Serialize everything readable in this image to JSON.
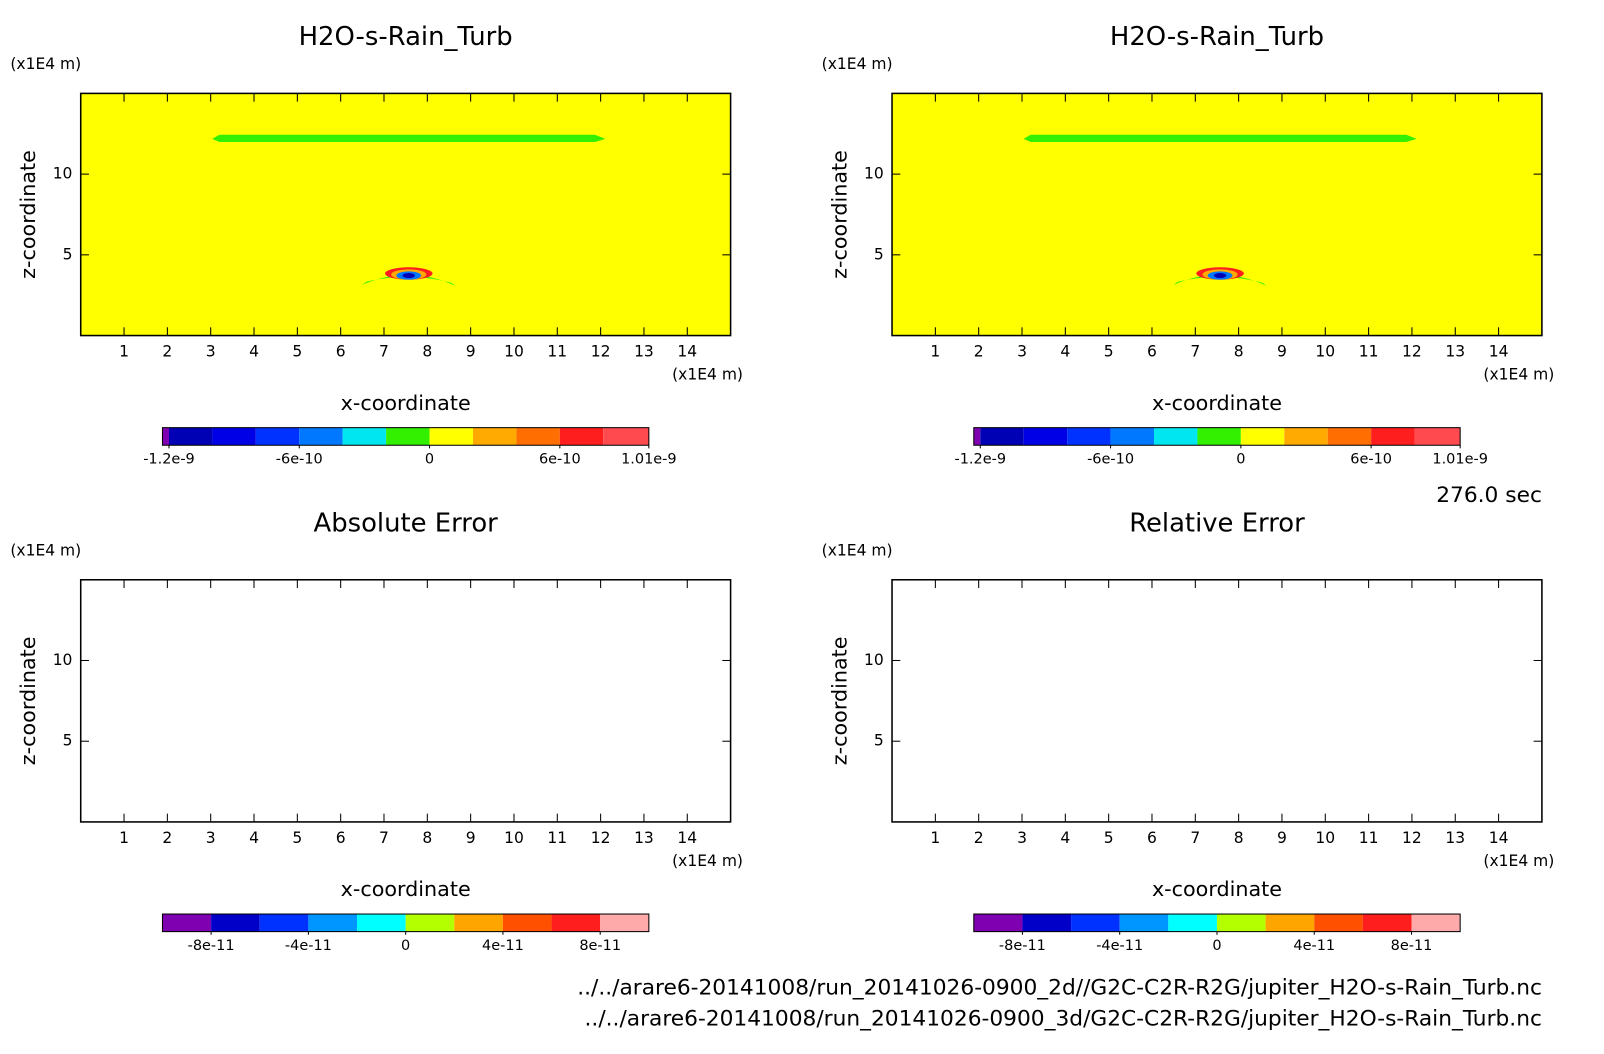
{
  "chart_data": [
    {
      "type": "contour",
      "title": "H2O-s-Rain_Turb",
      "xlabel": "x-coordinate",
      "ylabel": "z-coordinate",
      "xunit": "(x1E4 m)",
      "yunit": "(x1E4 m)",
      "xlim": [
        0,
        15
      ],
      "ylim": [
        0,
        15
      ],
      "xticks": [
        1,
        2,
        3,
        4,
        5,
        6,
        7,
        8,
        9,
        10,
        11,
        12,
        13,
        14
      ],
      "yticks": [
        5,
        10
      ],
      "background": "#ffff00",
      "colorbar": {
        "bounds": [
          -1.23e-09,
          -1.2e-09,
          -1e-09,
          -8e-10,
          -6e-10,
          -4e-10,
          -2e-10,
          0,
          2e-10,
          4e-10,
          6e-10,
          8e-10,
          1.01e-09
        ],
        "colors": [
          "#7f00b0",
          "#0000b4",
          "#0000e6",
          "#0032ff",
          "#0078ff",
          "#00e6f0",
          "#32f000",
          "#ffff00",
          "#ffaa00",
          "#ff6e00",
          "#ff1e1e",
          "#ff4b50"
        ],
        "ticks": [
          -1.2e-09,
          -6e-10,
          0,
          6e-10,
          1.01e-09
        ]
      }
    },
    {
      "type": "contour",
      "title": "H2O-s-Rain_Turb",
      "xlabel": "x-coordinate",
      "ylabel": "z-coordinate",
      "xunit": "(x1E4 m)",
      "yunit": "(x1E4 m)",
      "xlim": [
        0,
        15
      ],
      "ylim": [
        0,
        15
      ],
      "xticks": [
        1,
        2,
        3,
        4,
        5,
        6,
        7,
        8,
        9,
        10,
        11,
        12,
        13,
        14
      ],
      "yticks": [
        5,
        10
      ],
      "background": "#ffff00",
      "colorbar": {
        "bounds": [
          -1.23e-09,
          -1.2e-09,
          -1e-09,
          -8e-10,
          -6e-10,
          -4e-10,
          -2e-10,
          0,
          2e-10,
          4e-10,
          6e-10,
          8e-10,
          1.01e-09
        ],
        "colors": [
          "#7f00b0",
          "#0000b4",
          "#0000e6",
          "#0032ff",
          "#0078ff",
          "#00e6f0",
          "#32f000",
          "#ffff00",
          "#ffaa00",
          "#ff6e00",
          "#ff1e1e",
          "#ff4b50"
        ],
        "ticks": [
          -1.2e-09,
          -6e-10,
          0,
          6e-10,
          1.01e-09
        ]
      }
    },
    {
      "type": "contour",
      "title": "Absolute Error",
      "xlabel": "x-coordinate",
      "ylabel": "z-coordinate",
      "xunit": "(x1E4 m)",
      "yunit": "(x1E4 m)",
      "xlim": [
        0,
        15
      ],
      "ylim": [
        0,
        15
      ],
      "xticks": [
        1,
        2,
        3,
        4,
        5,
        6,
        7,
        8,
        9,
        10,
        11,
        12,
        13,
        14
      ],
      "yticks": [
        5,
        10
      ],
      "background": "#ffffff",
      "colorbar": {
        "bounds": [
          -1e-10,
          -8e-11,
          -6e-11,
          -4e-11,
          -2e-11,
          0,
          2e-11,
          4e-11,
          6e-11,
          8e-11,
          1e-10
        ],
        "colors": [
          "#7f00b0",
          "#0000c8",
          "#0032ff",
          "#0096ff",
          "#00ffff",
          "#b4ff00",
          "#ffa500",
          "#ff5000",
          "#ff1e1e",
          "#ffaaaa"
        ],
        "ticks": [
          -8e-11,
          -4e-11,
          0,
          4e-11,
          8e-11
        ]
      }
    },
    {
      "type": "contour",
      "title": "Relative Error",
      "xlabel": "x-coordinate",
      "ylabel": "z-coordinate",
      "xunit": "(x1E4 m)",
      "yunit": "(x1E4 m)",
      "xlim": [
        0,
        15
      ],
      "ylim": [
        0,
        15
      ],
      "xticks": [
        1,
        2,
        3,
        4,
        5,
        6,
        7,
        8,
        9,
        10,
        11,
        12,
        13,
        14
      ],
      "yticks": [
        5,
        10
      ],
      "background": "#ffffff",
      "colorbar": {
        "bounds": [
          -1e-10,
          -8e-11,
          -6e-11,
          -4e-11,
          -2e-11,
          0,
          2e-11,
          4e-11,
          6e-11,
          8e-11,
          1e-10
        ],
        "colors": [
          "#7f00b0",
          "#0000c8",
          "#0032ff",
          "#0096ff",
          "#00ffff",
          "#b4ff00",
          "#ffa500",
          "#ff5000",
          "#ff1e1e",
          "#ffaaaa"
        ],
        "ticks": [
          -8e-11,
          -4e-11,
          0,
          4e-11,
          8e-11
        ]
      }
    }
  ],
  "footer": {
    "time": "276.0 sec",
    "files": [
      "../../arare6-20141008/run_20141026-0900_2d//G2C-C2R-R2G/jupiter_H2O-s-Rain_Turb.nc",
      "../../arare6-20141008/run_20141026-0900_3d/G2C-C2R-R2G/jupiter_H2O-s-Rain_Turb.nc"
    ]
  }
}
